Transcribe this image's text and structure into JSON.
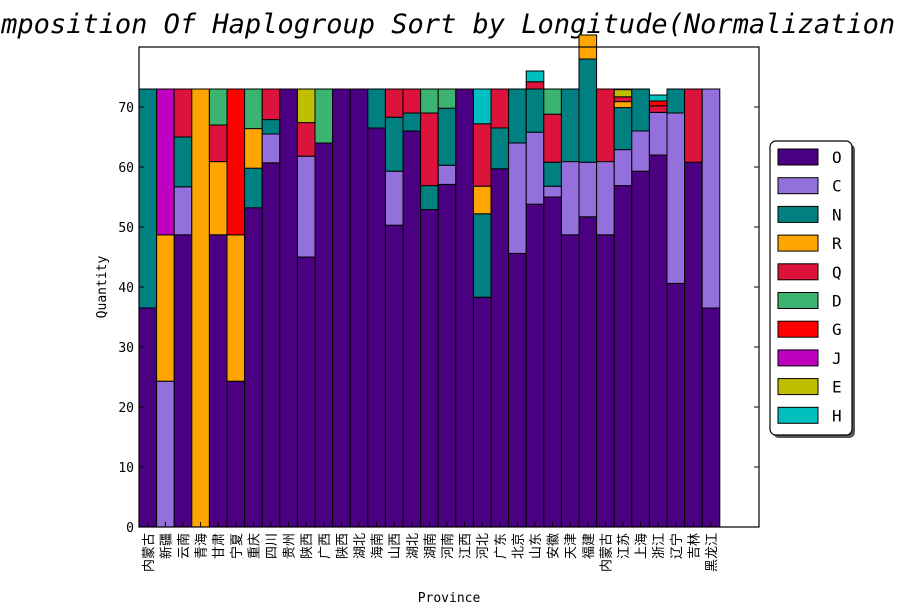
{
  "chart_data": {
    "type": "bar",
    "stacked": true,
    "title": "Composition Of Haplogroup  Sort by Longitude(Normalization)",
    "xlabel": "Province",
    "ylabel": "Quantity",
    "ylim": [
      0,
      80
    ],
    "yticks": [
      0,
      10,
      20,
      30,
      40,
      50,
      60,
      70
    ],
    "grid": false,
    "legend_position": "right",
    "categories": [
      "内蒙古",
      "新疆",
      "云南",
      "青海",
      "甘肃",
      "宁夏",
      "重庆",
      "四川",
      "贵州",
      "陕西",
      "广西",
      "陕西",
      "湖北",
      "海南",
      "山西",
      "湖北",
      "湖南",
      "河南",
      "江西",
      "河北",
      "广东",
      "北京",
      "山东",
      "安徽",
      "天津",
      "福建",
      "内蒙古",
      "江苏",
      "上海",
      "浙江",
      "辽宁",
      "吉林",
      "黑龙江"
    ],
    "series": [
      {
        "name": "O",
        "color": "#4B0082",
        "values": [
          36.5,
          0,
          48.7,
          0,
          48.7,
          24.3,
          53.2,
          60.7,
          73,
          45,
          64,
          73,
          73,
          66.5,
          50.3,
          66,
          52.9,
          57.1,
          73,
          38.3,
          59.7,
          45.6,
          53.8,
          55,
          48.7,
          51.7,
          48.7,
          56.9,
          59.3,
          62,
          40.6,
          60.8,
          36.5
        ]
      },
      {
        "name": "C",
        "color": "#9370DB",
        "values": [
          0,
          24.3,
          8,
          0,
          0,
          0,
          0,
          4.8,
          0,
          16.8,
          0,
          0,
          0,
          0,
          9,
          0,
          0,
          3.2,
          0,
          0,
          0,
          18.4,
          12,
          1.8,
          12.2,
          9.1,
          12.2,
          6,
          6.7,
          7.1,
          28.4,
          0,
          36.5
        ]
      },
      {
        "name": "N",
        "color": "#008080",
        "values": [
          36.5,
          0,
          8.3,
          0,
          0,
          0,
          6.6,
          2.4,
          0,
          0,
          0,
          0,
          0,
          6.5,
          9,
          3,
          4,
          9.5,
          0,
          13.9,
          6.8,
          9,
          7.2,
          4,
          12.1,
          17.2,
          0,
          7,
          7,
          0,
          4,
          0,
          0
        ]
      },
      {
        "name": "R",
        "color": "#FFA500",
        "values": [
          0,
          24.4,
          0,
          73,
          12.2,
          24.4,
          6.6,
          0,
          0,
          0,
          0,
          0,
          0,
          0,
          0,
          0,
          0,
          0,
          0,
          4.6,
          0,
          0,
          0,
          0,
          0,
          4,
          0,
          1,
          0,
          0,
          0,
          0,
          0
        ]
      },
      {
        "name": "Q",
        "color": "#DC143C",
        "values": [
          0,
          0,
          8,
          0,
          6.1,
          0,
          0,
          5.1,
          0,
          5.6,
          0,
          0,
          0,
          0,
          4.7,
          4,
          12.1,
          0,
          0,
          10.4,
          6.5,
          0,
          1.2,
          8,
          0,
          0,
          12.1,
          0.8,
          0,
          1.1,
          0,
          12.2,
          0
        ]
      },
      {
        "name": "D",
        "color": "#3CB371",
        "values": [
          0,
          0,
          0,
          0,
          6,
          0,
          6.6,
          0,
          0,
          0,
          9,
          0,
          0,
          0,
          0,
          0,
          4,
          3.2,
          0,
          0,
          0,
          0,
          0,
          4.2,
          0,
          0,
          0,
          0,
          0,
          0,
          0,
          0,
          0
        ]
      },
      {
        "name": "G",
        "color": "#FF0000",
        "values": [
          0,
          0,
          0,
          0,
          0,
          24.3,
          0,
          0,
          0,
          0,
          0,
          0,
          0,
          0,
          0,
          0,
          0,
          0,
          0,
          0,
          0,
          0,
          0,
          0,
          0,
          0,
          0,
          0,
          0,
          0.8,
          0,
          0,
          0
        ]
      },
      {
        "name": "J",
        "color": "#C000C0",
        "values": [
          0,
          24.3,
          0,
          0,
          0,
          0,
          0,
          0,
          0,
          0,
          0,
          0,
          0,
          0,
          0,
          0,
          0,
          0,
          0,
          0,
          0,
          0,
          0,
          0,
          0,
          0,
          0,
          0,
          0,
          0,
          0,
          0,
          0
        ]
      },
      {
        "name": "E",
        "color": "#BFBF00",
        "values": [
          0,
          0,
          0,
          0,
          0,
          0,
          0,
          0,
          0,
          5.6,
          0,
          0,
          0,
          0,
          0,
          0,
          0,
          0,
          0,
          0,
          0,
          0,
          0,
          0,
          0,
          0,
          0,
          1.2,
          0,
          0,
          0,
          0,
          0
        ]
      },
      {
        "name": "H",
        "color": "#00BFBF",
        "values": [
          0,
          0,
          0,
          0,
          0,
          0,
          0,
          0,
          0,
          0,
          0,
          0,
          0,
          0,
          0,
          0,
          0,
          0,
          0,
          5.8,
          0,
          0,
          1.8,
          0,
          0,
          0,
          0,
          0.1,
          0,
          1,
          0,
          0,
          0
        ]
      }
    ]
  }
}
